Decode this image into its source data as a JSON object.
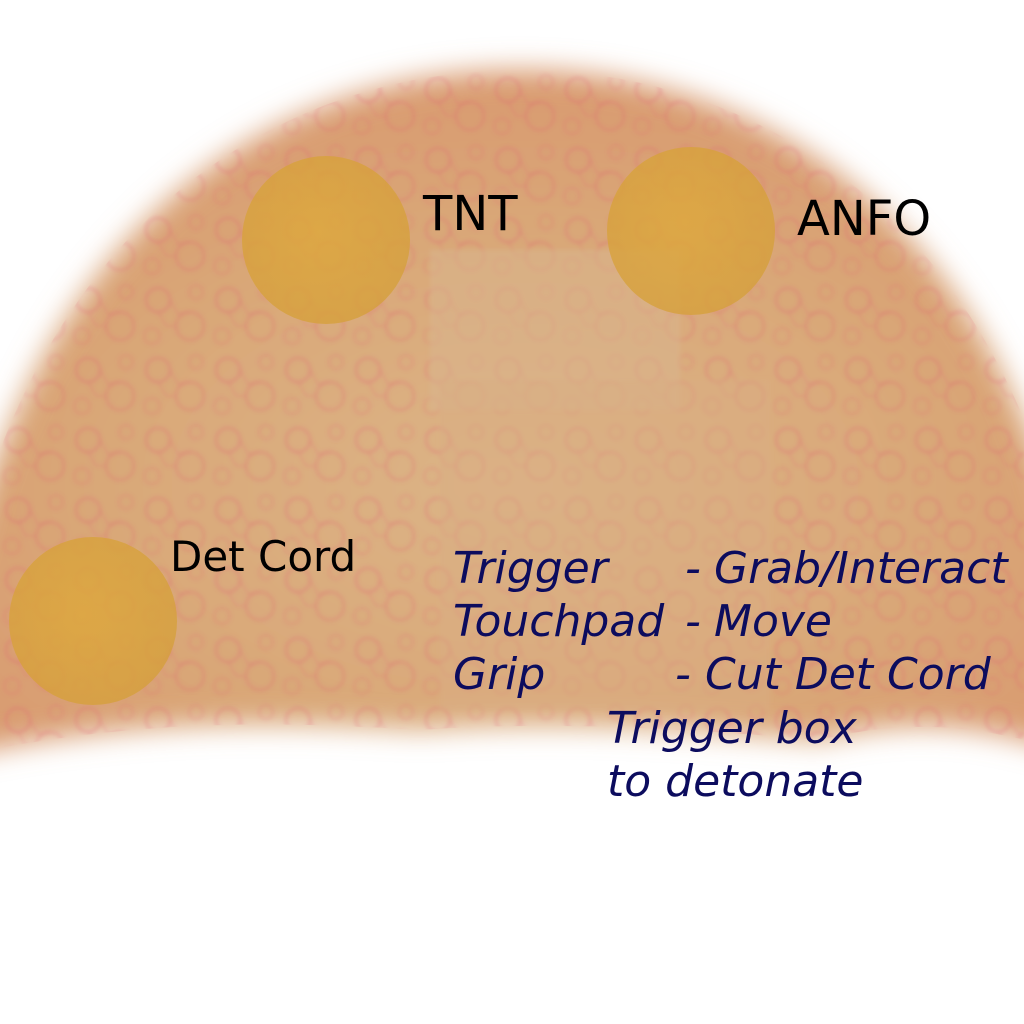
{
  "scene": {
    "background_color": "#ffffff",
    "dome_color": "#d9a878",
    "texture_color": "#e0506a"
  },
  "slots": [
    {
      "id": "tnt",
      "label": "TNT",
      "color": "#d8a23c"
    },
    {
      "id": "anfo",
      "label": "ANFO",
      "color": "#d8a23c"
    },
    {
      "id": "det_cord",
      "label": "Det Cord",
      "color": "#d8a23c"
    }
  ],
  "controls": [
    {
      "key": "Trigger",
      "action": "Grab/Interact"
    },
    {
      "key": "Touchpad",
      "action": "Move"
    },
    {
      "key": "Grip",
      "action": "Cut Det Cord"
    }
  ],
  "control_dash": "-",
  "detonate_hint": [
    "Trigger box",
    "to detonate"
  ],
  "text_colors": {
    "labels": "#000000",
    "instructions": "#0c0c5e"
  }
}
